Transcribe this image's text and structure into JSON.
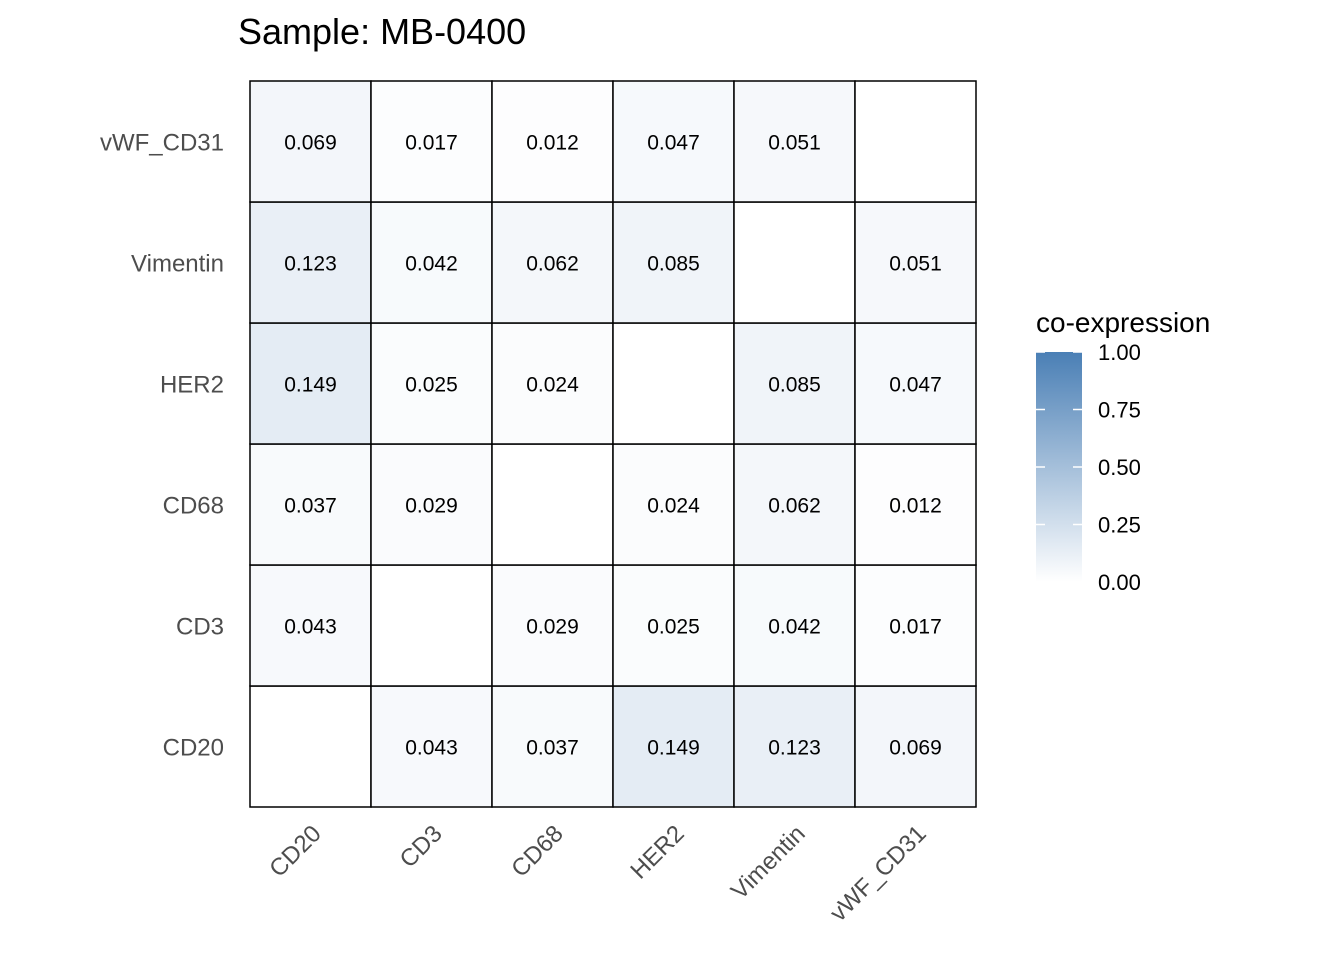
{
  "chart_data": {
    "type": "heatmap",
    "title": "Sample: MB-0400",
    "xlabel": "",
    "ylabel": "",
    "x_categories": [
      "CD20",
      "CD3",
      "CD68",
      "HER2",
      "Vimentin",
      "vWF_CD31"
    ],
    "y_categories": [
      "CD20",
      "CD3",
      "CD68",
      "HER2",
      "Vimentin",
      "vWF_CD31"
    ],
    "values": [
      [
        null,
        0.043,
        0.037,
        0.149,
        0.123,
        0.069
      ],
      [
        0.043,
        null,
        0.029,
        0.025,
        0.042,
        0.017
      ],
      [
        0.037,
        0.029,
        null,
        0.024,
        0.062,
        0.012
      ],
      [
        0.149,
        0.025,
        0.024,
        null,
        0.085,
        0.047
      ],
      [
        0.123,
        0.042,
        0.062,
        0.085,
        null,
        0.051
      ],
      [
        0.069,
        0.017,
        0.012,
        0.047,
        0.051,
        null
      ]
    ],
    "value_labels": [
      [
        "",
        "0.043",
        "0.037",
        "0.149",
        "0.123",
        "0.069"
      ],
      [
        "0.043",
        "",
        "0.029",
        "0.025",
        "0.042",
        "0.017"
      ],
      [
        "0.037",
        "0.029",
        "",
        "0.024",
        "0.062",
        "0.012"
      ],
      [
        "0.149",
        "0.025",
        "0.024",
        "",
        "0.085",
        "0.047"
      ],
      [
        "0.123",
        "0.042",
        "0.062",
        "0.085",
        "",
        "0.051"
      ],
      [
        "0.069",
        "0.017",
        "0.012",
        "0.047",
        "0.051",
        ""
      ]
    ],
    "legend": {
      "title": "co-expression",
      "position": "right",
      "range": [
        0,
        1
      ],
      "ticks": [
        1.0,
        0.75,
        0.5,
        0.25,
        0.0
      ],
      "tick_labels": [
        "1.00",
        "0.75",
        "0.50",
        "0.25",
        "0.00"
      ],
      "color_low": "#ffffff",
      "color_high": "#4a7fb5"
    },
    "grid": false,
    "cell_border_color": "#000000"
  }
}
